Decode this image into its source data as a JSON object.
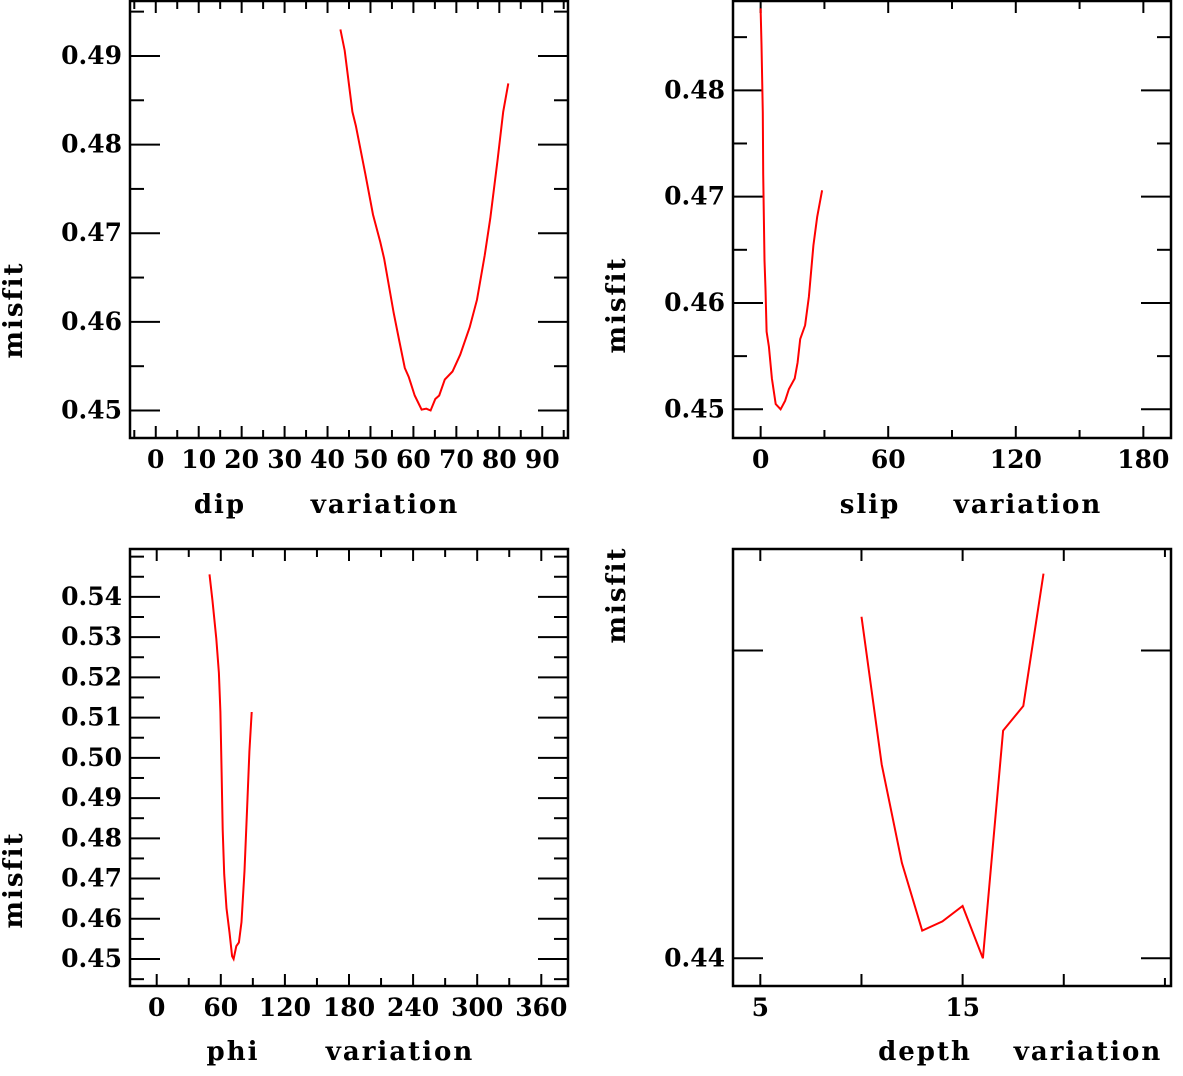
{
  "colors": {
    "line": "#ff0000",
    "axis": "#000000",
    "background": "#ffffff"
  },
  "chart_data": [
    {
      "type": "line",
      "id": "dip",
      "xlabel_parts": [
        "dip",
        "variation"
      ],
      "ylabel": "misfit",
      "xlim": [
        -6,
        96
      ],
      "ylim": [
        0.4469,
        0.4962
      ],
      "xticks_major": [
        0,
        10,
        20,
        30,
        40,
        50,
        60,
        70,
        80,
        90
      ],
      "xtick_labels": [
        "0",
        "10",
        "20",
        "30",
        "40",
        "50",
        "60",
        "70",
        "80",
        "90"
      ],
      "xtick_minor_step": 5,
      "yticks_major": [
        0.45,
        0.46,
        0.47,
        0.48,
        0.49
      ],
      "ytick_labels": [
        "0.45",
        "0.46",
        "0.47",
        "0.48",
        "0.49"
      ],
      "ytick_minor_step": 0.005,
      "x": [
        43,
        44,
        45.8,
        46.6,
        48.8,
        50.6,
        52.3,
        53.2,
        55.4,
        56.7,
        58,
        58.9,
        60.3,
        61.9,
        63,
        64,
        65.1,
        66,
        67.3,
        69.1,
        70.9,
        73.1,
        74.8,
        76.6,
        77.9,
        79.6,
        80.9,
        82.1
      ],
      "y": [
        0.493,
        0.4906,
        0.4837,
        0.4821,
        0.4767,
        0.4721,
        0.469,
        0.4671,
        0.461,
        0.4579,
        0.4548,
        0.4538,
        0.4517,
        0.4501,
        0.4502,
        0.45,
        0.4513,
        0.4517,
        0.4535,
        0.4544,
        0.4563,
        0.4594,
        0.4625,
        0.4675,
        0.4717,
        0.4783,
        0.4837,
        0.4869
      ]
    },
    {
      "type": "line",
      "id": "slip",
      "xlabel_parts": [
        "slip",
        "variation"
      ],
      "ylabel": "misfit",
      "xlim": [
        -13,
        193
      ],
      "ylim": [
        0.4473,
        0.4884
      ],
      "xticks_major": [
        0,
        60,
        120,
        180
      ],
      "xtick_labels": [
        "0",
        "60",
        "120",
        "180"
      ],
      "xtick_minor_step": 30,
      "yticks_major": [
        0.45,
        0.46,
        0.47,
        0.48
      ],
      "ytick_labels": [
        "0.45",
        "0.46",
        "0.47",
        "0.48"
      ],
      "ytick_minor_step": 0.005,
      "x": [
        0,
        0.4,
        1,
        1.2,
        1.8,
        2.3,
        2.8,
        3.9,
        5.3,
        7.1,
        9.4,
        11.5,
        13.3,
        16,
        17.4,
        18.6,
        20.9,
        22.7,
        24.8,
        26.6,
        28.9
      ],
      "y": [
        0.4877,
        0.4843,
        0.4779,
        0.4721,
        0.464,
        0.4613,
        0.4573,
        0.4559,
        0.4529,
        0.4505,
        0.45,
        0.4508,
        0.4519,
        0.4529,
        0.4544,
        0.4566,
        0.4579,
        0.4606,
        0.4654,
        0.4681,
        0.4706
      ]
    },
    {
      "type": "line",
      "id": "phi",
      "xlabel_parts": [
        "phi",
        "variation"
      ],
      "ylabel": "misfit",
      "xlim": [
        -25,
        385
      ],
      "ylim": [
        0.4433,
        0.5519
      ],
      "xticks_major": [
        0,
        60,
        120,
        180,
        240,
        300,
        360
      ],
      "xtick_labels": [
        "0",
        "60",
        "120",
        "180",
        "240",
        "300",
        "360"
      ],
      "xtick_minor_step": 30,
      "yticks_major": [
        0.45,
        0.46,
        0.47,
        0.48,
        0.49,
        0.5,
        0.51,
        0.52,
        0.53,
        0.54
      ],
      "ytick_labels": [
        "0.45",
        "0.46",
        "0.47",
        "0.48",
        "0.49",
        "0.50",
        "0.51",
        "0.52",
        "0.53",
        "0.54"
      ],
      "ytick_minor_step": 0.005,
      "x": [
        49.4,
        52.2,
        55.8,
        58.2,
        59.6,
        60.7,
        61.8,
        63.2,
        65.3,
        68.1,
        70.6,
        72,
        74.5,
        76.9,
        79.4,
        82.2,
        84.7,
        86.8,
        88.9
      ],
      "y": [
        0.5456,
        0.539,
        0.5296,
        0.5211,
        0.5114,
        0.4965,
        0.4821,
        0.4711,
        0.4626,
        0.4566,
        0.4507,
        0.45,
        0.4532,
        0.4541,
        0.4592,
        0.4719,
        0.488,
        0.5016,
        0.5114
      ]
    },
    {
      "type": "line",
      "id": "depth",
      "xlabel_parts": [
        "depth",
        "variation"
      ],
      "ylabel": "misfit",
      "xlim": [
        3.65,
        25.3
      ],
      "ylim": [
        0.4391,
        0.4533
      ],
      "xticks_major": [
        5,
        10,
        15,
        20
      ],
      "xtick_labels": [
        "5",
        "",
        "15",
        ""
      ],
      "xtick_minor_step": 5,
      "yticks_major": [
        0.44,
        0.45
      ],
      "ytick_labels": [
        "0.44",
        ""
      ],
      "ytick_minor_step": 0.01,
      "x": [
        10,
        11,
        12,
        13,
        14,
        15,
        16,
        17,
        18,
        19
      ],
      "y": [
        0.4511,
        0.4463,
        0.4431,
        0.4409,
        0.4412,
        0.4417,
        0.44,
        0.4474,
        0.4482,
        0.4525
      ]
    }
  ]
}
